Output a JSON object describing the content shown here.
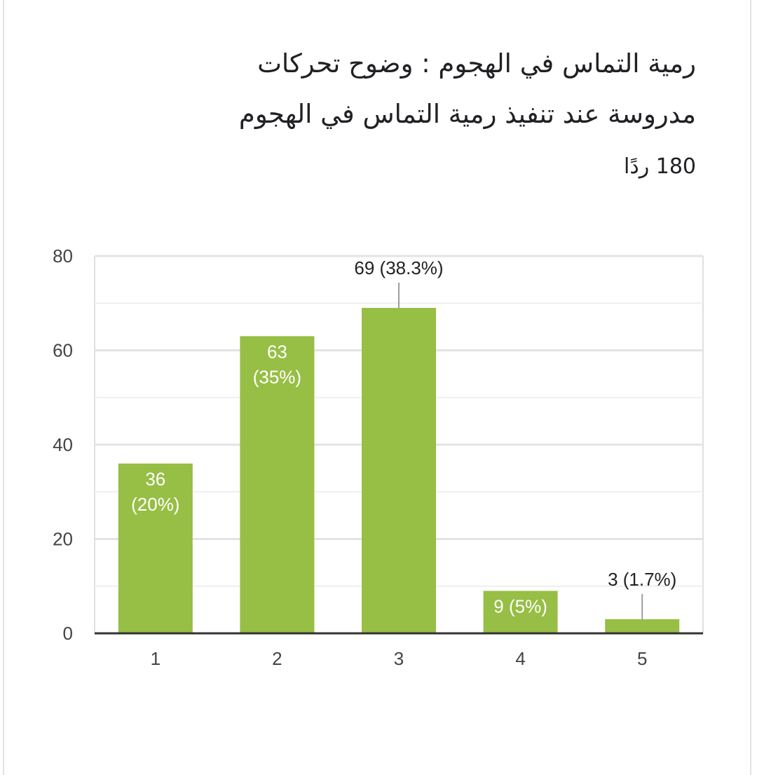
{
  "question": {
    "title": "رمية التماس في الهجوم : وضوح تحركات مدروسة عند تنفيذ رمية التماس في الهجوم",
    "responses_label": "180 ردًا"
  },
  "chart_data": {
    "type": "bar",
    "title": "رمية التماس في الهجوم : وضوح تحركات مدروسة عند تنفيذ رمية التماس في الهجوم",
    "categories": [
      "1",
      "2",
      "3",
      "4",
      "5"
    ],
    "values": [
      36,
      63,
      69,
      9,
      3
    ],
    "data_labels": [
      "36 (20%)",
      "63 (35%)",
      "69 (38.3%)",
      "9 (5%)",
      "3 (1.7%)"
    ],
    "label_lines": [
      [
        "36",
        "(20%)"
      ],
      [
        "63",
        "(35%)"
      ],
      [
        "69 (38.3%)"
      ],
      [
        "9 (5%)"
      ],
      [
        "3 (1.7%)"
      ]
    ],
    "label_placement": [
      "inside",
      "inside",
      "above",
      "inside",
      "above"
    ],
    "y_ticks": [
      "0",
      "20",
      "40",
      "60",
      "80"
    ],
    "ylim": [
      0,
      80
    ],
    "grid": true,
    "bar_color": "#97be45",
    "xlabel": "",
    "ylabel": ""
  }
}
